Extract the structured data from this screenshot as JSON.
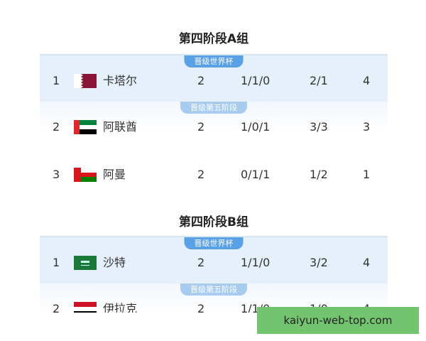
{
  "groups": [
    {
      "title": "第四阶段A组",
      "rows": [
        {
          "rank": "1",
          "flag": "qatar-flag-icon",
          "team": "卡塔尔",
          "played": "2",
          "wdl": "1/1/0",
          "goals": "2/1",
          "points": "4",
          "badge": "晋级世界杯"
        },
        {
          "rank": "2",
          "flag": "uae-flag-icon",
          "team": "阿联酋",
          "played": "2",
          "wdl": "1/0/1",
          "goals": "3/3",
          "points": "3",
          "badge": "晋级第五阶段"
        },
        {
          "rank": "3",
          "flag": "oman-flag-icon",
          "team": "阿曼",
          "played": "2",
          "wdl": "0/1/1",
          "goals": "1/2",
          "points": "1"
        }
      ]
    },
    {
      "title": "第四阶段B组",
      "rows": [
        {
          "rank": "1",
          "flag": "saudi-flag-icon",
          "team": "沙特",
          "played": "2",
          "wdl": "1/1/0",
          "goals": "3/2",
          "points": "4",
          "badge": "晋级世界杯"
        },
        {
          "rank": "2",
          "flag": "iraq-flag-icon",
          "team": "伊拉克",
          "played": "2",
          "wdl": "1/1/0",
          "goals": "1/0",
          "points": "4",
          "badge": "晋级第五阶段"
        }
      ]
    }
  ],
  "watermark": "kaiyun-web-top.com",
  "colors": {
    "highlight": "#e5f0fb",
    "badge": "#5aa0e6",
    "watermark_bg": "#73c46f"
  }
}
